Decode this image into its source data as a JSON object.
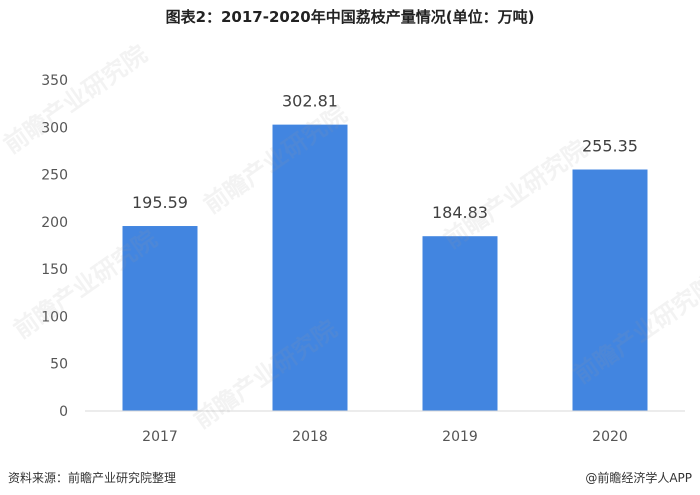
{
  "title": "图表2：2017-2020年中国荔枝产量情况(单位：万吨)",
  "chart_data": {
    "type": "bar",
    "title": "图表2：2017-2020年中国荔枝产量情况(单位：万吨)",
    "categories": [
      "2017",
      "2018",
      "2019",
      "2020"
    ],
    "values": [
      195.59,
      302.81,
      184.83,
      255.35
    ],
    "value_labels": [
      "195.59",
      "302.81",
      "184.83",
      "255.35"
    ],
    "ylim": [
      0,
      350
    ],
    "yticks": [
      0,
      50,
      100,
      150,
      200,
      250,
      300,
      350
    ],
    "grid": false,
    "legend": "none",
    "bar_color": "#4285e0"
  },
  "footer": {
    "source": "资料来源：前瞻产业研究院整理",
    "brand": "@前瞻经济学人APP"
  },
  "watermark": {
    "text": "前瞻产业研究院"
  }
}
